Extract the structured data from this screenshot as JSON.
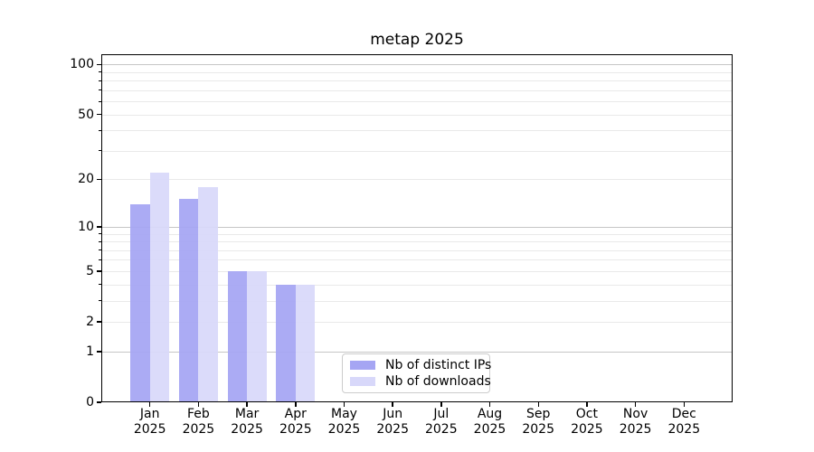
{
  "chart_data": {
    "type": "bar",
    "title": "metap 2025",
    "categories": [
      "Jan",
      "Feb",
      "Mar",
      "Apr",
      "May",
      "Jun",
      "Jul",
      "Aug",
      "Sep",
      "Oct",
      "Nov",
      "Dec"
    ],
    "year_label": "2025",
    "series": [
      {
        "name": "Nb of distinct IPs",
        "color": "#a5a5f3",
        "values": [
          14,
          15,
          5,
          4,
          0,
          0,
          0,
          0,
          0,
          0,
          0,
          0
        ]
      },
      {
        "name": "Nb of downloads",
        "color": "#d8d8fa",
        "values": [
          22,
          18,
          5,
          4,
          0,
          0,
          0,
          0,
          0,
          0,
          0,
          0
        ]
      }
    ],
    "yscale": "log1p",
    "ylim": [
      0,
      115
    ],
    "yticks": [
      0,
      1,
      2,
      5,
      10,
      20,
      50,
      100
    ],
    "ytick_labels": [
      "0",
      "1",
      "2",
      "5",
      "10",
      "20",
      "50",
      "100"
    ],
    "major_grid_values": [
      1,
      10,
      100
    ],
    "minor_grid_values": [
      2,
      3,
      4,
      5,
      6,
      7,
      8,
      9,
      20,
      30,
      40,
      50,
      60,
      70,
      80,
      90
    ],
    "grid": true,
    "legend_position": "lower-center"
  },
  "colors": {
    "grid_major": "#c6c6c6",
    "grid_minor": "#e9e9e9",
    "spine": "#000000",
    "text": "#000000",
    "legend_border": "#cccccc",
    "background": "#ffffff"
  }
}
